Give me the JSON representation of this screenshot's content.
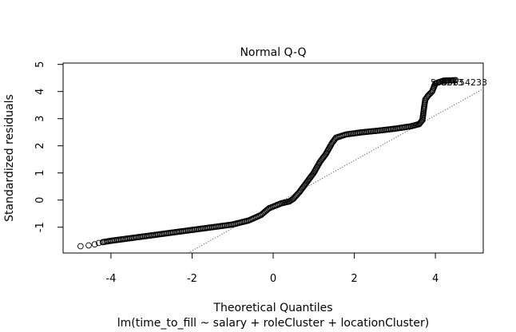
{
  "chart_data": {
    "type": "scatter",
    "title": "Normal Q-Q",
    "xlabel": "Theoretical Quantiles",
    "ylabel": "Standardized residuals",
    "subtitle": "lm(time_to_fill ~ salary + roleCluster + locationCluster)",
    "xlim": [
      -5.18,
      5.18
    ],
    "ylim": [
      -1.95,
      5.05
    ],
    "xticks": [
      "-4",
      "-2",
      "0",
      "2",
      "4"
    ],
    "yticks": [
      "-1",
      "0",
      "1",
      "2",
      "3",
      "4",
      "5"
    ],
    "grid": false,
    "marker": "open-circle",
    "reference_line": {
      "style": "dotted",
      "color": "#555555",
      "points": [
        [
          -2.1,
          -1.95
        ],
        [
          5.18,
          4.1
        ]
      ]
    },
    "point_labels": [
      "50856",
      "9213",
      "54233"
    ],
    "curve": [
      [
        -4.75,
        -1.7
      ],
      [
        -4.55,
        -1.67
      ],
      [
        -4.4,
        -1.63
      ],
      [
        -4.3,
        -1.58
      ],
      [
        -4.2,
        -1.55
      ],
      [
        -4.0,
        -1.5
      ],
      [
        -3.5,
        -1.4
      ],
      [
        -3.0,
        -1.3
      ],
      [
        -2.5,
        -1.2
      ],
      [
        -2.0,
        -1.1
      ],
      [
        -1.5,
        -1.0
      ],
      [
        -1.0,
        -0.9
      ],
      [
        -0.6,
        -0.75
      ],
      [
        -0.3,
        -0.55
      ],
      [
        -0.1,
        -0.3
      ],
      [
        0.2,
        -0.12
      ],
      [
        0.4,
        -0.05
      ],
      [
        0.5,
        0.05
      ],
      [
        0.65,
        0.3
      ],
      [
        0.8,
        0.6
      ],
      [
        1.0,
        1.0
      ],
      [
        1.15,
        1.4
      ],
      [
        1.3,
        1.7
      ],
      [
        1.45,
        2.1
      ],
      [
        1.55,
        2.3
      ],
      [
        1.8,
        2.42
      ],
      [
        2.2,
        2.5
      ],
      [
        2.6,
        2.56
      ],
      [
        3.0,
        2.63
      ],
      [
        3.4,
        2.72
      ],
      [
        3.6,
        2.8
      ],
      [
        3.68,
        2.95
      ],
      [
        3.72,
        3.4
      ],
      [
        3.75,
        3.7
      ],
      [
        3.82,
        3.85
      ],
      [
        3.92,
        4.0
      ],
      [
        4.0,
        4.3
      ],
      [
        4.2,
        4.4
      ],
      [
        4.5,
        4.42
      ]
    ]
  }
}
